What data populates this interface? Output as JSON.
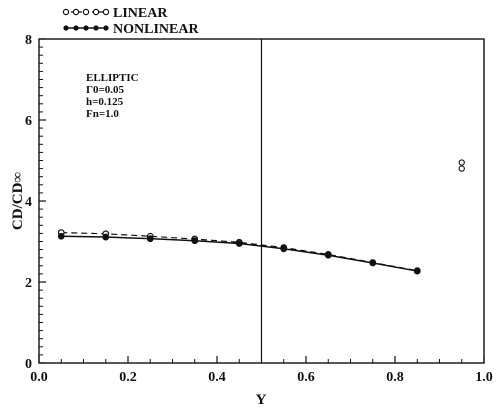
{
  "chart_data": {
    "type": "line",
    "xlabel": "Y",
    "ylabel": "CD/CD∞",
    "xlim": [
      0.0,
      1.0
    ],
    "ylim": [
      0,
      8
    ],
    "x_ticks": [
      "0.0",
      "0.2",
      "0.4",
      "0.6",
      "0.8",
      "1.0"
    ],
    "y_ticks": [
      "0",
      "2",
      "4",
      "6",
      "8"
    ],
    "grid": false,
    "legend_placement": "top-left, above plot",
    "annotation_lines": [
      "ELLIPTIC",
      "Γ0=0.05",
      "h=0.125",
      "Fn=1.0"
    ],
    "vertical_reference_x": 0.5,
    "series": [
      {
        "name": "LINEAR",
        "marker": "open-circle",
        "line_style": "dashed",
        "x": [
          0.05,
          0.15,
          0.25,
          0.35,
          0.45,
          0.55,
          0.65,
          0.75,
          0.85
        ],
        "y": [
          3.22,
          3.19,
          3.13,
          3.06,
          2.98,
          2.85,
          2.68,
          2.48,
          2.28
        ]
      },
      {
        "name": "NONLINEAR",
        "marker": "filled-circle",
        "line_style": "solid",
        "x": [
          0.05,
          0.15,
          0.25,
          0.35,
          0.45,
          0.55,
          0.65,
          0.75,
          0.85
        ],
        "y": [
          3.13,
          3.11,
          3.07,
          3.02,
          2.95,
          2.82,
          2.66,
          2.47,
          2.27
        ]
      }
    ],
    "stray_points": [
      {
        "x": 0.95,
        "y": 4.95,
        "marker": "open-circle"
      },
      {
        "x": 0.95,
        "y": 4.8,
        "marker": "open-circle"
      }
    ]
  }
}
